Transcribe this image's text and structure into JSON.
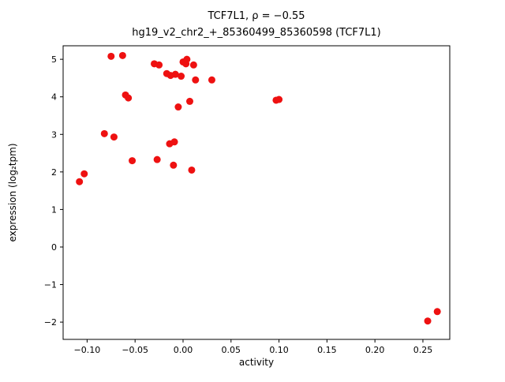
{
  "colors": {
    "marker": "#ee1111",
    "axis": "#000000",
    "background": "#ffffff"
  },
  "chart_data": {
    "type": "scatter",
    "title": "TCF7L1, ρ = −0.55",
    "subtitle": "hg19_v2_chr2_+_85360499_85360598 (TCF7L1)",
    "xlabel": "activity",
    "ylabel": "expression (log₂tpm)",
    "xlim": [
      -0.125,
      0.278
    ],
    "ylim": [
      -2.46,
      5.36
    ],
    "grid": false,
    "legend": "none",
    "xticks": [
      -0.1,
      -0.05,
      0.0,
      0.05,
      0.1,
      0.15,
      0.2,
      0.25
    ],
    "xtick_labels": [
      "−0.10",
      "−0.05",
      "0.00",
      "0.05",
      "0.10",
      "0.15",
      "0.20",
      "0.25"
    ],
    "yticks": [
      -2,
      -1,
      0,
      1,
      2,
      3,
      4,
      5
    ],
    "ytick_labels": [
      "−2",
      "−1",
      "0",
      "1",
      "2",
      "3",
      "4",
      "5"
    ],
    "x": [
      -0.108,
      -0.103,
      -0.082,
      -0.075,
      -0.063,
      -0.072,
      -0.06,
      -0.057,
      -0.053,
      -0.03,
      -0.025,
      -0.027,
      -0.017,
      -0.013,
      -0.008,
      -0.014,
      -0.009,
      -0.01,
      -0.005,
      -0.002,
      0.0,
      0.003,
      0.004,
      0.007,
      0.009,
      0.011,
      0.013,
      0.03,
      0.097,
      0.1,
      0.255,
      0.265
    ],
    "y": [
      1.74,
      1.95,
      3.02,
      5.08,
      5.1,
      2.93,
      4.05,
      3.97,
      2.3,
      4.88,
      4.85,
      2.33,
      4.62,
      4.57,
      4.6,
      2.75,
      2.8,
      2.18,
      3.73,
      4.55,
      4.93,
      4.88,
      5.0,
      3.88,
      2.05,
      4.85,
      4.45,
      4.45,
      3.91,
      3.93,
      -1.97,
      -1.72
    ]
  }
}
